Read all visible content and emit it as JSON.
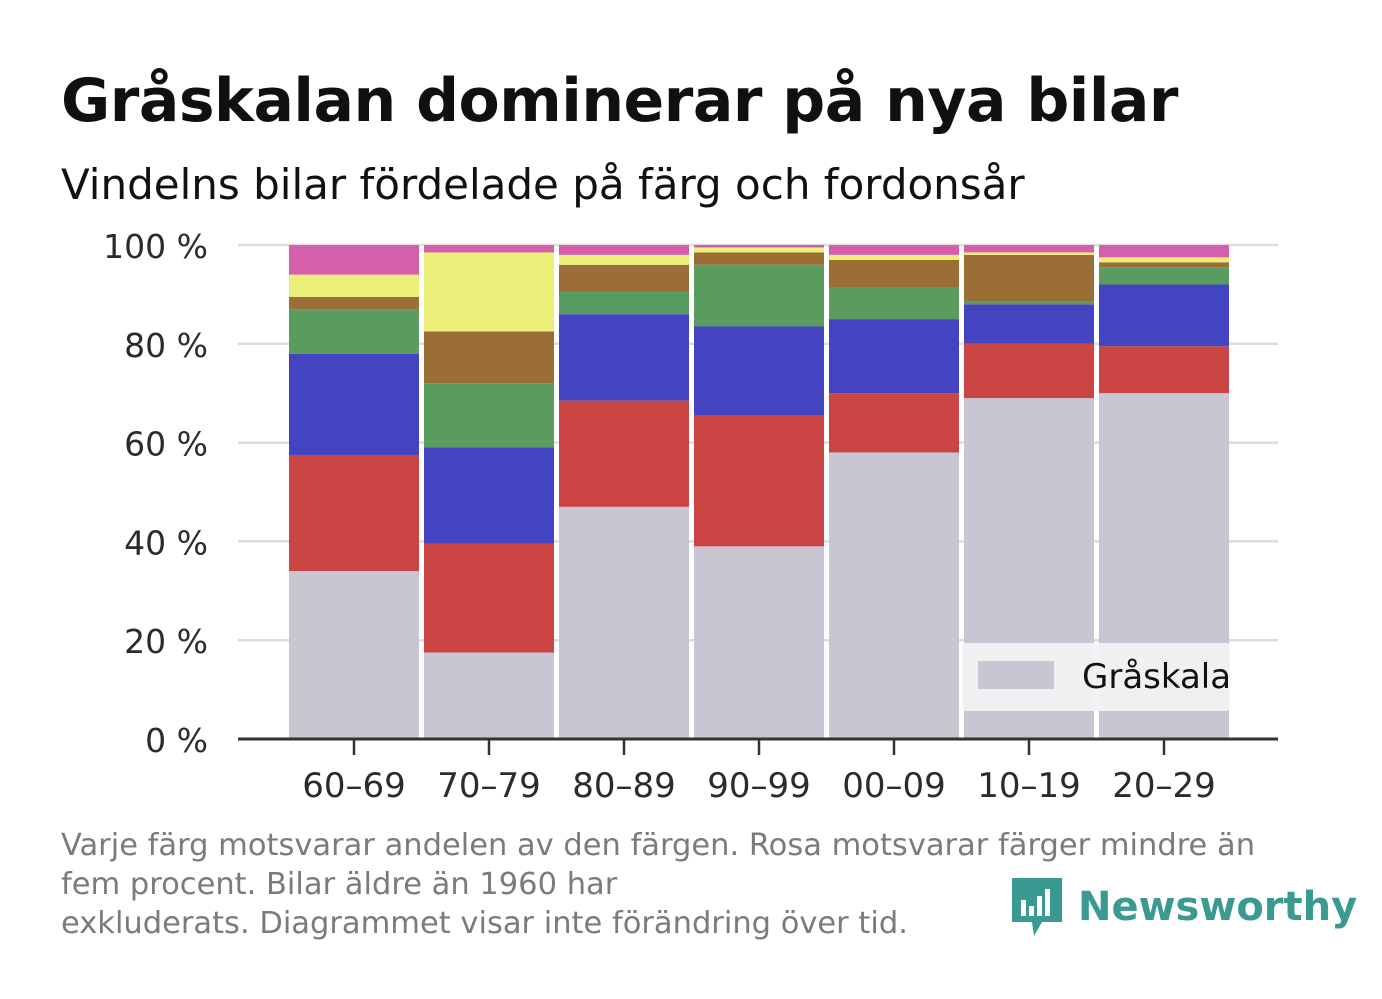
{
  "title": "Gråskalan dominerar på nya bilar",
  "subtitle": "Vindelns bilar fördelade på färg och fordonsår",
  "footnote": [
    "Varje färg motsvarar andelen av den färgen. Rosa motsvarar färger mindre än",
    "fem procent. Bilar äldre än 1960 har",
    "exkluderats. Diagrammet visar inte förändring över tid."
  ],
  "brand": {
    "name": "Newsworthy",
    "color": "#3a9a92"
  },
  "chart_data": {
    "type": "bar",
    "stacked": true,
    "categories": [
      "60–69",
      "70–79",
      "80–89",
      "90–99",
      "00–09",
      "10–19",
      "20–29"
    ],
    "yticks": [
      "0 %",
      "20 %",
      "40 %",
      "60 %",
      "80 %",
      "100 %"
    ],
    "ylim": [
      0,
      100
    ],
    "grid": true,
    "legend": {
      "position": "bottom-right",
      "entries": [
        "Gråskala"
      ]
    },
    "series": [
      {
        "name": "Gråskala",
        "color": "#c8c6d2",
        "values": [
          34,
          17.5,
          47,
          39,
          58,
          69,
          70
        ]
      },
      {
        "color": "#cc4545",
        "values": [
          23.5,
          22,
          21.5,
          26.5,
          12,
          11,
          9.5
        ]
      },
      {
        "color": "#4444c0",
        "values": [
          20.5,
          19.5,
          17.5,
          18,
          15,
          8,
          12.5
        ]
      },
      {
        "color": "#5a9b60",
        "values": [
          9,
          13,
          4.5,
          12.5,
          6.5,
          0.5,
          3.5
        ]
      },
      {
        "color": "#9a6e34",
        "values": [
          2.5,
          10.5,
          5.5,
          2.5,
          5.5,
          9.5,
          1
        ]
      },
      {
        "color": "#ebee78",
        "values": [
          4.5,
          16,
          2,
          1,
          1,
          0.5,
          1
        ]
      },
      {
        "color": "#d65fab",
        "values": [
          6,
          1.5,
          2,
          0.5,
          2,
          1.5,
          2.5
        ]
      }
    ]
  }
}
